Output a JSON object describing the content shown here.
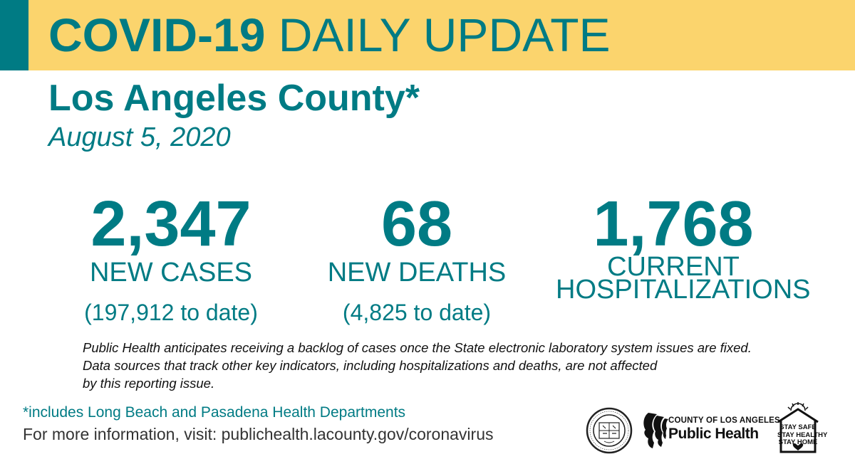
{
  "header": {
    "title_bold": "COVID-19",
    "title_rest": " DAILY UPDATE",
    "accent_color": "#007b84",
    "banner_color": "#fbd46d"
  },
  "region": "Los Angeles County*",
  "date": "August 5, 2020",
  "stats": [
    {
      "value": "2,347",
      "label_lines": [
        "NEW CASES"
      ],
      "subtext": "(197,912 to date)"
    },
    {
      "value": "68",
      "label_lines": [
        "NEW DEATHS"
      ],
      "subtext": "(4,825 to date)"
    },
    {
      "value": "1,768",
      "label_lines": [
        "CURRENT",
        "HOSPITALIZATIONS"
      ],
      "subtext": ""
    }
  ],
  "notice_lines": [
    "Public Health anticipates receiving a backlog of cases once the State electronic laboratory system issues are fixed.",
    "Data sources that track other key indicators, including hospitalizations and deaths, are not affected",
    "by this reporting issue."
  ],
  "footnote": "*includes Long Beach and Pasadena Health Departments",
  "more_info": "For more information, visit: publichealth.lacounty.gov/coronavirus",
  "logos": {
    "seal_icon": "county-seal-icon",
    "public_health": {
      "small": "COUNTY OF LOS ANGELES",
      "big": "Public Health"
    },
    "stay_home_lines": [
      "STAY SAFE",
      "STAY HEALTHY",
      "STAY HOME"
    ]
  }
}
